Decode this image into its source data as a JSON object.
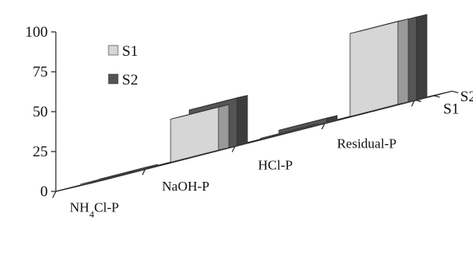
{
  "chart_data": {
    "type": "bar",
    "variant": "3d-clustered",
    "categories": [
      "NH4Cl-P",
      "NaOH-P",
      "HCl-P",
      "Residual-P"
    ],
    "series": [
      {
        "name": "S1",
        "values": [
          0.5,
          27,
          0.5,
          52
        ],
        "color": "#d6d6d6"
      },
      {
        "name": "S2",
        "values": [
          1,
          30,
          3,
          52
        ],
        "color": "#555555"
      }
    ],
    "yticks": [
      "0",
      "25",
      "50",
      "75",
      "100"
    ],
    "ylim": [
      0,
      100
    ],
    "depth_labels": [
      "S2",
      "S1"
    ],
    "legend": {
      "position": "top-left",
      "items": [
        "S1",
        "S2"
      ]
    },
    "grid": false
  }
}
